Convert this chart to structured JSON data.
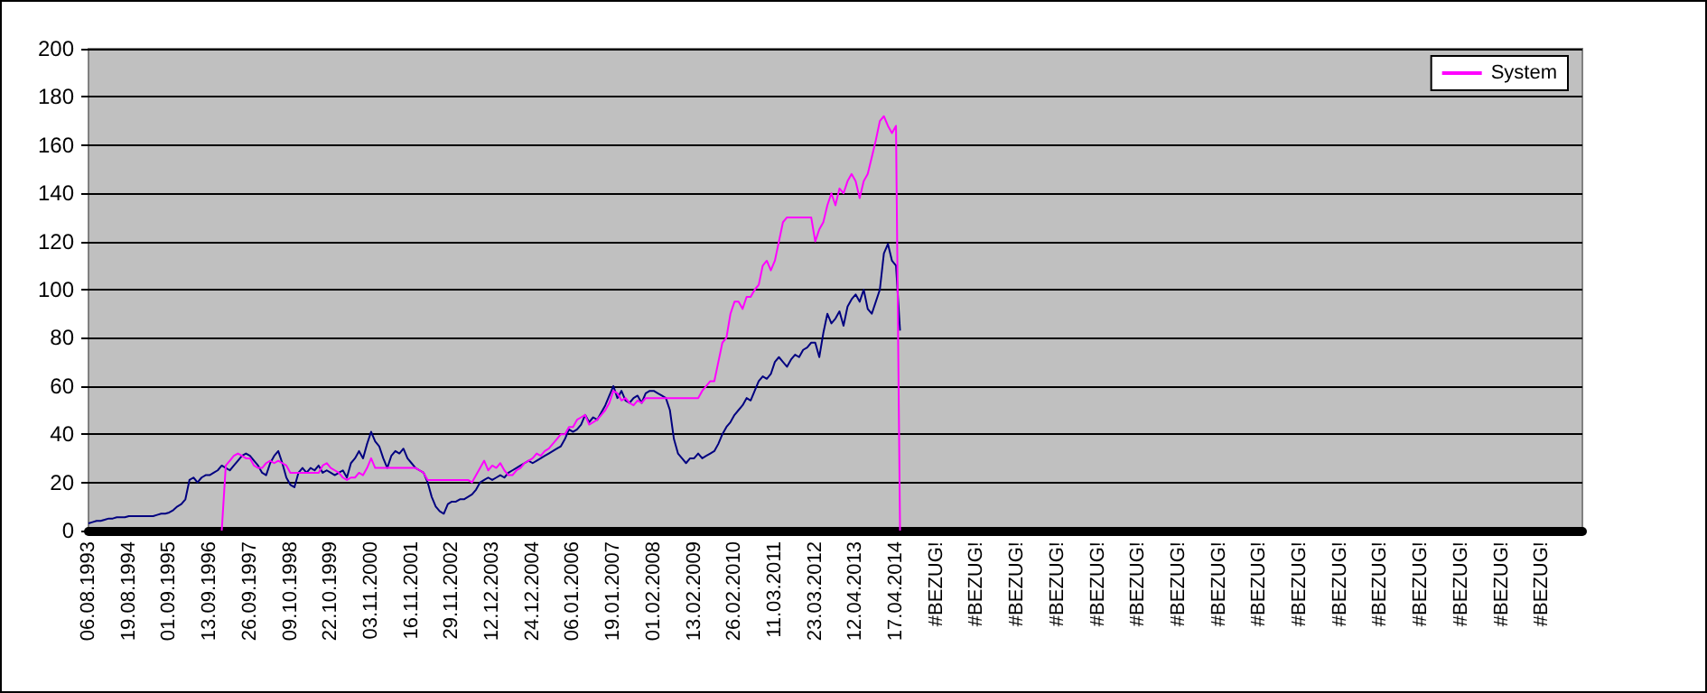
{
  "chart_data": {
    "type": "line",
    "categories": [
      "06.08.1993",
      null,
      null,
      null,
      null,
      null,
      null,
      null,
      null,
      null,
      "19.08.1994",
      null,
      null,
      null,
      null,
      null,
      null,
      null,
      null,
      null,
      "01.09.1995",
      null,
      null,
      null,
      null,
      null,
      null,
      null,
      null,
      null,
      "13.09.1996",
      null,
      null,
      null,
      null,
      null,
      null,
      null,
      null,
      null,
      "26.09.1997",
      null,
      null,
      null,
      null,
      null,
      null,
      null,
      null,
      null,
      "09.10.1998",
      null,
      null,
      null,
      null,
      null,
      null,
      null,
      null,
      null,
      "22.10.1999",
      null,
      null,
      null,
      null,
      null,
      null,
      null,
      null,
      null,
      "03.11.2000",
      null,
      null,
      null,
      null,
      null,
      null,
      null,
      null,
      null,
      "16.11.2001",
      null,
      null,
      null,
      null,
      null,
      null,
      null,
      null,
      null,
      "29.11.2002",
      null,
      null,
      null,
      null,
      null,
      null,
      null,
      null,
      null,
      "12.12.2003",
      null,
      null,
      null,
      null,
      null,
      null,
      null,
      null,
      null,
      "24.12.2004",
      null,
      null,
      null,
      null,
      null,
      null,
      null,
      null,
      null,
      "06.01.2006",
      null,
      null,
      null,
      null,
      null,
      null,
      null,
      null,
      null,
      "19.01.2007",
      null,
      null,
      null,
      null,
      null,
      null,
      null,
      null,
      null,
      "01.02.2008",
      null,
      null,
      null,
      null,
      null,
      null,
      null,
      null,
      null,
      "13.02.2009",
      null,
      null,
      null,
      null,
      null,
      null,
      null,
      null,
      null,
      "26.02.2010",
      null,
      null,
      null,
      null,
      null,
      null,
      null,
      null,
      null,
      "11.03.2011",
      null,
      null,
      null,
      null,
      null,
      null,
      null,
      null,
      null,
      "23.03.2012",
      null,
      null,
      null,
      null,
      null,
      null,
      null,
      null,
      null,
      "12.04.2013",
      null,
      null,
      null,
      null,
      null,
      null,
      null,
      null,
      null,
      "17.04.2014",
      null,
      null,
      null,
      null,
      null,
      null,
      null,
      null,
      null,
      "#BEZUG!",
      null,
      null,
      null,
      null,
      null,
      null,
      null,
      null,
      null,
      "#BEZUG!",
      null,
      null,
      null,
      null,
      null,
      null,
      null,
      null,
      null,
      "#BEZUG!",
      null,
      null,
      null,
      null,
      null,
      null,
      null,
      null,
      null,
      "#BEZUG!",
      null,
      null,
      null,
      null,
      null,
      null,
      null,
      null,
      null,
      "#BEZUG!",
      null,
      null,
      null,
      null,
      null,
      null,
      null,
      null,
      null,
      "#BEZUG!",
      null,
      null,
      null,
      null,
      null,
      null,
      null,
      null,
      null,
      "#BEZUG!",
      null,
      null,
      null,
      null,
      null,
      null,
      null,
      null,
      null,
      "#BEZUG!",
      null,
      null,
      null,
      null,
      null,
      null,
      null,
      null,
      null,
      "#BEZUG!",
      null,
      null,
      null,
      null,
      null,
      null,
      null,
      null,
      null,
      "#BEZUG!",
      null,
      null,
      null,
      null,
      null,
      null,
      null,
      null,
      null,
      "#BEZUG!",
      null,
      null,
      null,
      null,
      null,
      null,
      null,
      null,
      null,
      "#BEZUG!",
      null,
      null,
      null,
      null,
      null,
      null,
      null,
      null,
      null,
      "#BEZUG!",
      null,
      null,
      null,
      null,
      null,
      null,
      null,
      null,
      null,
      "#BEZUG!",
      null,
      null,
      null,
      null,
      null,
      null,
      null,
      null,
      null,
      "#BEZUG!",
      null,
      null,
      null,
      null,
      null,
      null,
      null,
      null,
      null,
      "#BEZUG!",
      null,
      null,
      null,
      null,
      null,
      null,
      null,
      null,
      null,
      null
    ],
    "series": [
      {
        "color": "#000080",
        "values": [
          3,
          3.5,
          4,
          4,
          4.5,
          5,
          5,
          5.5,
          5.5,
          5.5,
          6,
          6,
          6,
          6,
          6,
          6,
          6,
          6.5,
          7,
          7,
          7.5,
          8.5,
          10,
          11,
          13,
          21,
          22,
          20,
          22,
          23,
          23,
          24,
          25,
          27,
          26,
          25,
          27,
          29,
          31,
          32,
          31,
          29,
          27,
          24,
          23,
          28,
          31,
          33,
          28,
          22,
          19,
          18,
          24,
          26,
          24,
          26,
          25,
          27,
          24,
          25,
          24,
          23,
          24,
          25,
          22,
          28,
          30,
          33,
          30,
          36,
          41,
          37,
          35,
          30,
          26,
          31,
          33,
          32,
          34,
          30,
          28,
          26,
          25,
          24,
          20,
          14,
          10,
          8,
          7,
          11,
          12,
          12,
          13,
          13,
          14,
          15,
          17,
          20,
          21,
          22,
          21,
          22,
          23,
          22,
          24,
          25,
          26,
          27,
          28,
          29,
          28,
          29,
          30,
          31,
          32,
          33,
          34,
          35,
          38,
          42,
          41,
          42,
          44,
          48,
          45,
          47,
          46,
          49,
          52,
          56,
          60,
          55,
          58,
          54,
          53,
          55,
          56,
          53,
          57,
          58,
          58,
          57,
          56,
          55,
          50,
          38,
          32,
          30,
          28,
          30,
          30,
          32,
          30,
          31,
          32,
          33,
          36,
          40,
          43,
          45,
          48,
          50,
          52,
          55,
          54,
          58,
          62,
          64,
          63,
          65,
          70,
          72,
          70,
          68,
          71,
          73,
          72,
          75,
          76,
          78,
          78,
          72,
          82,
          90,
          86,
          88,
          91,
          85,
          93,
          96,
          98,
          95,
          100,
          92,
          90,
          95,
          100,
          115,
          119,
          112,
          110,
          83,
          null,
          null,
          null,
          null,
          null,
          null,
          null,
          null,
          null,
          null,
          null,
          null,
          null,
          null,
          null,
          null,
          null,
          null,
          null,
          null,
          null,
          null,
          null,
          null,
          null,
          null,
          null,
          null,
          null,
          null,
          null,
          null,
          null,
          null,
          null,
          null,
          null,
          null,
          null,
          null,
          null,
          null,
          null,
          null,
          null,
          null,
          null,
          null,
          null,
          null,
          null,
          null,
          null,
          null,
          null,
          null,
          null,
          null,
          null,
          null,
          null,
          null,
          null,
          null,
          null,
          null,
          null,
          null,
          null,
          null,
          null,
          null,
          null,
          null,
          null,
          null,
          null,
          null,
          null,
          null,
          null,
          null,
          null,
          null,
          null,
          null,
          null,
          null,
          null,
          null,
          null,
          null,
          null,
          null,
          null,
          null,
          null,
          null,
          null,
          null,
          null,
          null,
          null,
          null,
          null,
          null,
          null,
          null,
          null,
          null,
          null,
          null,
          null,
          null,
          null,
          null,
          null,
          null,
          null,
          null,
          null,
          null,
          null,
          null,
          null,
          null,
          null,
          null,
          null,
          null,
          null,
          null,
          null,
          null,
          null,
          null,
          null,
          null,
          null,
          null,
          null,
          null,
          null,
          null,
          null,
          null,
          null,
          null,
          null,
          null,
          null,
          null,
          null,
          null,
          null,
          null,
          null,
          null,
          null,
          null,
          null,
          null,
          null,
          null,
          null,
          null,
          null,
          null,
          null
        ]
      },
      {
        "name": "System",
        "color": "#ff00ff",
        "values": [
          null,
          null,
          null,
          null,
          null,
          null,
          null,
          null,
          null,
          null,
          null,
          null,
          null,
          null,
          null,
          null,
          null,
          null,
          null,
          null,
          null,
          null,
          null,
          null,
          null,
          null,
          null,
          null,
          null,
          null,
          null,
          null,
          null,
          0,
          27,
          29,
          31,
          32,
          31,
          30,
          30,
          27,
          26,
          26,
          28,
          29,
          28,
          29,
          28,
          27,
          24,
          24,
          24,
          24,
          24,
          24,
          24,
          24,
          27,
          28,
          26,
          25,
          24,
          22,
          21,
          22,
          22,
          24,
          23,
          26,
          30,
          26,
          26,
          26,
          26,
          26,
          26,
          26,
          26,
          26,
          26,
          26,
          25,
          24,
          21,
          21,
          21,
          21,
          21,
          21,
          21,
          21,
          21,
          21,
          21,
          20,
          23,
          26,
          29,
          25,
          27,
          26,
          28,
          25,
          23,
          23,
          25,
          26,
          28,
          29,
          30,
          32,
          31,
          33,
          34,
          36,
          38,
          40,
          40,
          43,
          43,
          46,
          47,
          48,
          44,
          45,
          46,
          48,
          50,
          53,
          58,
          57,
          54,
          55,
          53,
          52,
          54,
          53,
          55,
          55,
          55,
          55,
          55,
          55,
          55,
          55,
          55,
          55,
          55,
          55,
          55,
          55,
          58,
          60,
          62,
          62,
          70,
          78,
          80,
          90,
          95,
          95,
          92,
          97,
          97,
          100,
          102,
          110,
          112,
          108,
          112,
          120,
          128,
          130,
          130,
          130,
          130,
          130,
          130,
          130,
          120,
          125,
          128,
          135,
          140,
          135,
          142,
          140,
          145,
          148,
          145,
          138,
          145,
          148,
          155,
          162,
          170,
          172,
          168,
          165,
          168,
          0,
          null,
          null,
          null,
          null,
          null,
          null,
          null,
          null,
          null,
          null,
          null,
          null,
          null,
          null,
          null,
          null,
          null,
          null,
          null,
          null,
          null,
          null,
          null,
          null,
          null,
          null,
          null,
          null,
          null,
          null,
          null,
          null,
          null,
          null,
          null,
          null,
          null,
          null,
          null,
          null,
          null,
          null,
          null,
          null,
          null,
          null,
          null,
          null,
          null,
          null,
          null,
          null,
          null,
          null,
          null,
          null,
          null,
          null,
          null,
          null,
          null,
          null,
          null,
          null,
          null,
          null,
          null,
          null,
          null,
          null,
          null,
          null,
          null,
          null,
          null,
          null,
          null,
          null,
          null,
          null,
          null,
          null,
          null,
          null,
          null,
          null,
          null,
          null,
          null,
          null,
          null,
          null,
          null,
          null,
          null,
          null,
          null,
          null,
          null,
          null,
          null,
          null,
          null,
          null,
          null,
          null,
          null,
          null,
          null,
          null,
          null,
          null,
          null,
          null,
          null,
          null,
          null,
          null,
          null,
          null,
          null,
          null,
          null,
          null,
          null,
          null,
          null,
          null,
          null,
          null,
          null,
          null,
          null,
          null,
          null,
          null,
          null,
          null,
          null,
          null,
          null,
          null,
          null,
          null,
          null,
          null,
          null,
          null,
          null,
          null,
          null,
          null,
          null,
          null,
          null,
          null,
          null,
          null,
          null,
          null,
          null,
          null,
          null,
          null,
          null,
          null,
          null,
          null,
          null
        ]
      }
    ],
    "ylim": [
      0,
      200
    ],
    "yticks": [
      0,
      20,
      40,
      60,
      80,
      100,
      120,
      140,
      160,
      180,
      200
    ],
    "grid": "y",
    "legend": "top right",
    "marker": "none",
    "line_style": "solid"
  }
}
